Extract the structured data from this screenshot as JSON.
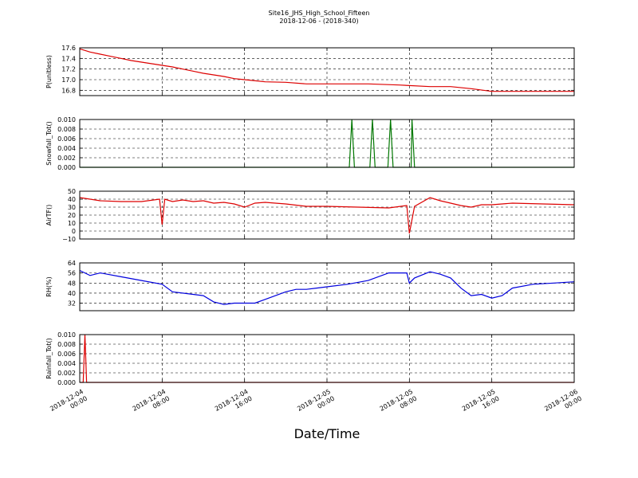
{
  "figure": {
    "title_line1": "Site16_JHS_High_School_Fifteen",
    "title_line2": "2018-12-06 - (2018-340)",
    "xlabel": "Date/Time",
    "x_ticks": [
      {
        "line1": "2018-12-04",
        "line2": "00:00"
      },
      {
        "line1": "2018-12-04",
        "line2": "08:00"
      },
      {
        "line1": "2018-12-04",
        "line2": "16:00"
      },
      {
        "line1": "2018-12-05",
        "line2": "00:00"
      },
      {
        "line1": "2018-12-05",
        "line2": "08:00"
      },
      {
        "line1": "2018-12-05",
        "line2": "16:00"
      },
      {
        "line1": "2018-12-06",
        "line2": "00:00"
      }
    ],
    "xlim": [
      "2018-12-04 00:00",
      "2018-12-06 00:00"
    ]
  },
  "chart_data": [
    {
      "type": "line",
      "ylabel": "P(unitless)",
      "ylim": [
        16.7,
        17.6
      ],
      "yticks": [
        "17.6",
        "17.4",
        "17.2",
        "17.0",
        "16.8"
      ],
      "ytick_values": [
        17.6,
        17.4,
        17.2,
        17.0,
        16.8
      ],
      "grid": true,
      "color": "#dd0000",
      "x": [
        "2018-12-04 00:00",
        "2018-12-04 01:00",
        "2018-12-04 02:00",
        "2018-12-04 03:00",
        "2018-12-04 04:00",
        "2018-12-04 05:00",
        "2018-12-04 06:00",
        "2018-12-04 07:00",
        "2018-12-04 08:00",
        "2018-12-04 09:00",
        "2018-12-04 10:00",
        "2018-12-04 11:00",
        "2018-12-04 12:00",
        "2018-12-04 13:00",
        "2018-12-04 14:00",
        "2018-12-04 15:00",
        "2018-12-04 16:00",
        "2018-12-04 18:00",
        "2018-12-04 20:00",
        "2018-12-04 22:00",
        "2018-12-05 00:00",
        "2018-12-05 04:00",
        "2018-12-05 07:00",
        "2018-12-05 10:00",
        "2018-12-05 12:00",
        "2018-12-05 14:00",
        "2018-12-05 16:00",
        "2018-12-05 20:00",
        "2018-12-06 00:00"
      ],
      "y": [
        17.58,
        17.52,
        17.48,
        17.44,
        17.4,
        17.36,
        17.33,
        17.3,
        17.27,
        17.24,
        17.2,
        17.16,
        17.12,
        17.09,
        17.06,
        17.02,
        17.0,
        16.96,
        16.95,
        16.92,
        16.92,
        16.92,
        16.9,
        16.87,
        16.87,
        16.83,
        16.78,
        16.78,
        16.78
      ]
    },
    {
      "type": "line",
      "ylabel": "Snowfall_Tot()",
      "ylim": [
        0.0,
        0.01
      ],
      "yticks": [
        "0.010",
        "0.008",
        "0.006",
        "0.004",
        "0.002",
        "0.000"
      ],
      "ytick_values": [
        0.01,
        0.008,
        0.006,
        0.004,
        0.002,
        0.0
      ],
      "grid": true,
      "color": "#007700",
      "x": [
        "2018-12-04 00:00",
        "2018-12-05 02:10",
        "2018-12-05 02:25",
        "2018-12-05 02:40",
        "2018-12-05 04:10",
        "2018-12-05 04:25",
        "2018-12-05 04:40",
        "2018-12-05 05:55",
        "2018-12-05 06:10",
        "2018-12-05 06:25",
        "2018-12-05 08:10",
        "2018-12-05 08:15",
        "2018-12-05 08:30",
        "2018-12-06 00:00"
      ],
      "y": [
        0,
        0,
        0.01,
        0,
        0,
        0.01,
        0,
        0,
        0.01,
        0,
        0,
        0.01,
        0,
        0
      ]
    },
    {
      "type": "line",
      "ylabel": "AirTF()",
      "ylim": [
        -10,
        50
      ],
      "yticks": [
        "50",
        "40",
        "30",
        "20",
        "10",
        "0",
        "−10"
      ],
      "ytick_values": [
        50,
        40,
        30,
        20,
        10,
        0,
        -10
      ],
      "grid": true,
      "color": "#dd0000",
      "x": [
        "2018-12-04 00:00",
        "2018-12-04 02:00",
        "2018-12-04 04:00",
        "2018-12-04 06:00",
        "2018-12-04 07:45",
        "2018-12-04 08:00",
        "2018-12-04 08:15",
        "2018-12-04 09:00",
        "2018-12-04 10:00",
        "2018-12-04 11:00",
        "2018-12-04 12:00",
        "2018-12-04 13:00",
        "2018-12-04 14:00",
        "2018-12-04 15:00",
        "2018-12-04 16:00",
        "2018-12-04 17:00",
        "2018-12-04 18:00",
        "2018-12-04 20:00",
        "2018-12-04 22:00",
        "2018-12-05 00:00",
        "2018-12-05 03:00",
        "2018-12-05 06:00",
        "2018-12-05 07:45",
        "2018-12-05 08:00",
        "2018-12-05 08:30",
        "2018-12-05 10:00",
        "2018-12-05 11:00",
        "2018-12-05 12:00",
        "2018-12-05 13:00",
        "2018-12-05 14:00",
        "2018-12-05 15:00",
        "2018-12-05 16:00",
        "2018-12-05 18:00",
        "2018-12-05 21:00",
        "2018-12-06 00:00"
      ],
      "y": [
        42,
        38,
        37,
        37,
        40,
        8,
        40,
        37,
        39,
        37,
        38,
        35,
        36,
        34,
        30,
        35,
        36,
        34,
        31,
        31,
        30,
        29,
        32,
        -3,
        31,
        42,
        38,
        35,
        32,
        30,
        33,
        33,
        35,
        34,
        33
      ]
    },
    {
      "type": "line",
      "ylabel": "RH(%)",
      "ylim": [
        26,
        64
      ],
      "yticks": [
        "64",
        "56",
        "48",
        "40",
        "32"
      ],
      "ytick_values": [
        64,
        56,
        48,
        40,
        32
      ],
      "grid": true,
      "color": "#0000dd",
      "x": [
        "2018-12-04 00:00",
        "2018-12-04 01:00",
        "2018-12-04 02:00",
        "2018-12-04 04:00",
        "2018-12-04 06:00",
        "2018-12-04 08:00",
        "2018-12-04 09:00",
        "2018-12-04 11:00",
        "2018-12-04 12:00",
        "2018-12-04 13:00",
        "2018-12-04 14:00",
        "2018-12-04 15:00",
        "2018-12-04 16:00",
        "2018-12-04 17:00",
        "2018-12-04 18:00",
        "2018-12-04 19:00",
        "2018-12-04 20:00",
        "2018-12-04 21:00",
        "2018-12-04 22:00",
        "2018-12-04 23:00",
        "2018-12-05 00:00",
        "2018-12-05 02:00",
        "2018-12-05 04:00",
        "2018-12-05 06:00",
        "2018-12-05 07:45",
        "2018-12-05 08:00",
        "2018-12-05 08:30",
        "2018-12-05 10:00",
        "2018-12-05 11:00",
        "2018-12-05 12:00",
        "2018-12-05 13:00",
        "2018-12-05 14:00",
        "2018-12-05 15:00",
        "2018-12-05 16:00",
        "2018-12-05 17:00",
        "2018-12-05 18:00",
        "2018-12-05 20:00",
        "2018-12-05 22:00",
        "2018-12-06 00:00"
      ],
      "y": [
        58,
        54,
        56,
        53,
        50,
        47,
        41,
        39,
        38,
        33,
        31,
        32,
        32,
        32,
        35,
        38,
        41,
        43,
        43,
        44,
        45,
        47,
        50,
        56,
        56,
        48,
        52,
        57,
        55,
        52,
        44,
        38,
        39,
        36,
        38,
        44,
        47,
        48,
        49
      ]
    },
    {
      "type": "line",
      "ylabel": "Rainfall_Tot()",
      "ylim": [
        0.0,
        0.01
      ],
      "yticks": [
        "0.010",
        "0.008",
        "0.006",
        "0.004",
        "0.002",
        "0.000"
      ],
      "ytick_values": [
        0.01,
        0.008,
        0.006,
        0.004,
        0.002,
        0.0
      ],
      "grid": true,
      "color": "#dd0000",
      "x": [
        "2018-12-04 00:00",
        "2018-12-04 00:20",
        "2018-12-04 00:30",
        "2018-12-04 00:40",
        "2018-12-06 00:00"
      ],
      "y": [
        0,
        0,
        0.01,
        0,
        0
      ]
    }
  ]
}
